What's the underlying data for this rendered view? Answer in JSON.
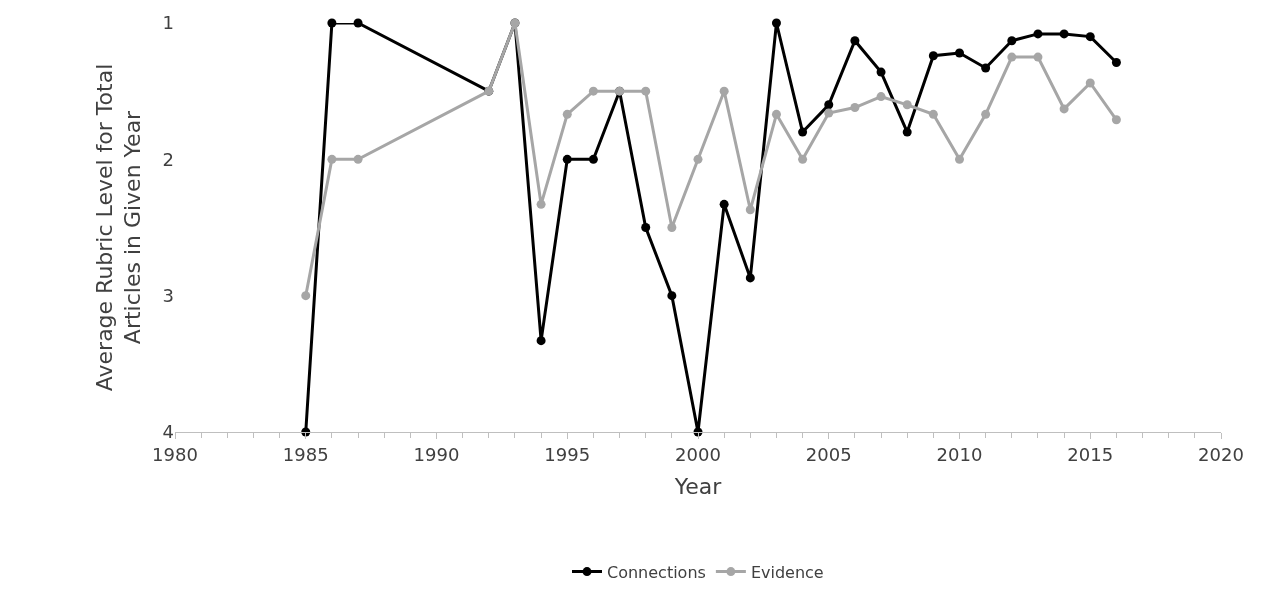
{
  "chart_data": {
    "type": "line",
    "xlabel": "Year",
    "ylabel": "Average Rubric Level for Total\nArticles in Given Year",
    "x": [
      1985,
      1986,
      1987,
      1992,
      1993,
      1994,
      1995,
      1996,
      1997,
      1998,
      1999,
      2000,
      2001,
      2002,
      2003,
      2004,
      2005,
      2006,
      2007,
      2008,
      2009,
      2010,
      2011,
      2012,
      2013,
      2014,
      2015,
      2016
    ],
    "series": [
      {
        "name": "Connections",
        "color": "#000000",
        "values": [
          4,
          1,
          1,
          1.5,
          1,
          3.33,
          2,
          2,
          1.5,
          2.5,
          3,
          4,
          2.33,
          2.87,
          1,
          1.8,
          1.6,
          1.13,
          1.36,
          1.8,
          1.24,
          1.22,
          1.33,
          1.13,
          1.08,
          1.08,
          1.1,
          1.29
        ]
      },
      {
        "name": "Evidence",
        "color": "#a6a6a6",
        "values": [
          3,
          2,
          2,
          1.5,
          1,
          2.33,
          1.67,
          1.5,
          1.5,
          1.5,
          2.5,
          2,
          1.5,
          2.37,
          1.67,
          2,
          1.66,
          1.62,
          1.54,
          1.6,
          1.67,
          2,
          1.67,
          1.25,
          1.25,
          1.63,
          1.44,
          1.71
        ]
      }
    ],
    "xlim": [
      1980,
      2020
    ],
    "xticks": [
      1980,
      1985,
      1990,
      1995,
      2000,
      2005,
      2010,
      2015,
      2020
    ],
    "ylim": [
      4,
      1
    ],
    "yticks": [
      1,
      2,
      3,
      4
    ],
    "legend": "bottom",
    "marker": "circle",
    "line_style": "solid"
  }
}
